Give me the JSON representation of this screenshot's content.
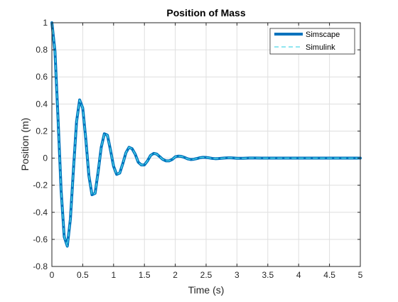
{
  "figure": {
    "title": "Position of Mass",
    "xlabel": "Time (s)",
    "ylabel": "Position (m)"
  },
  "chart_data": {
    "type": "line",
    "title": "Position of Mass",
    "xlabel": "Time (s)",
    "ylabel": "Position (m)",
    "xlim": [
      0,
      5
    ],
    "ylim": [
      -0.8,
      1
    ],
    "xticks": [
      0,
      0.5,
      1,
      1.5,
      2,
      2.5,
      3,
      3.5,
      4,
      4.5,
      5
    ],
    "xtick_labels": [
      "0",
      "0.5",
      "1",
      "1.5",
      "2",
      "2.5",
      "3",
      "3.5",
      "4",
      "4.5",
      "5"
    ],
    "yticks": [
      -0.8,
      -0.6,
      -0.4,
      -0.2,
      0,
      0.2,
      0.4,
      0.6,
      0.8,
      1
    ],
    "ytick_labels": [
      "-0.8",
      "-0.6",
      "-0.4",
      "-0.2",
      "0",
      "0.2",
      "0.4",
      "0.6",
      "0.8",
      "1"
    ],
    "grid": true,
    "legend_position": "top-right",
    "x": [
      0,
      0.05,
      0.1,
      0.15,
      0.2,
      0.25,
      0.3,
      0.35,
      0.4,
      0.45,
      0.5,
      0.55,
      0.6,
      0.65,
      0.7,
      0.75,
      0.8,
      0.85,
      0.9,
      0.95,
      1.0,
      1.05,
      1.1,
      1.15,
      1.2,
      1.25,
      1.3,
      1.35,
      1.4,
      1.45,
      1.5,
      1.55,
      1.6,
      1.65,
      1.7,
      1.75,
      1.8,
      1.85,
      1.9,
      1.95,
      2.0,
      2.05,
      2.1,
      2.15,
      2.2,
      2.25,
      2.3,
      2.35,
      2.4,
      2.45,
      2.5,
      2.55,
      2.6,
      2.65,
      2.7,
      2.75,
      2.8,
      2.85,
      2.9,
      2.95,
      3.0,
      3.1,
      3.2,
      3.3,
      3.4,
      3.5,
      3.6,
      3.7,
      3.8,
      3.9,
      4.0,
      4.1,
      4.2,
      4.3,
      4.4,
      4.5,
      4.6,
      4.7,
      4.8,
      4.9,
      5.0
    ],
    "series": [
      {
        "name": "Simscape",
        "color": "#0072bd",
        "style": "solid",
        "values": [
          1.0,
          0.79,
          0.29,
          -0.24,
          -0.58,
          -0.65,
          -0.45,
          -0.08,
          0.27,
          0.43,
          0.37,
          0.14,
          -0.13,
          -0.27,
          -0.26,
          -0.1,
          0.08,
          0.18,
          0.17,
          0.06,
          -0.06,
          -0.12,
          -0.11,
          -0.04,
          0.04,
          0.08,
          0.07,
          0.03,
          -0.03,
          -0.05,
          -0.05,
          -0.02,
          0.02,
          0.035,
          0.03,
          0.01,
          -0.01,
          -0.02,
          -0.02,
          -0.01,
          0.01,
          0.015,
          0.013,
          0.005,
          -0.005,
          -0.01,
          -0.008,
          -0.003,
          0.003,
          0.006,
          0.005,
          0.002,
          -0.002,
          -0.004,
          -0.003,
          -0.001,
          0.001,
          0.002,
          0.002,
          0.001,
          -0.001,
          -0.001,
          0.001,
          0.001,
          0.0,
          0.0,
          0.0,
          0.0,
          0.0,
          0.0,
          0.0,
          0.0,
          0.0,
          0.0,
          0.0,
          0.0,
          0.0,
          0.0,
          0.0,
          0.0,
          0.0
        ]
      },
      {
        "name": "Simulink",
        "color": "#4dd8e8",
        "style": "dashed",
        "values": [
          1.0,
          0.79,
          0.29,
          -0.24,
          -0.58,
          -0.65,
          -0.45,
          -0.08,
          0.27,
          0.43,
          0.37,
          0.14,
          -0.13,
          -0.27,
          -0.26,
          -0.1,
          0.08,
          0.18,
          0.17,
          0.06,
          -0.06,
          -0.12,
          -0.11,
          -0.04,
          0.04,
          0.08,
          0.07,
          0.03,
          -0.03,
          -0.05,
          -0.05,
          -0.02,
          0.02,
          0.035,
          0.03,
          0.01,
          -0.01,
          -0.02,
          -0.02,
          -0.01,
          0.01,
          0.015,
          0.013,
          0.005,
          -0.005,
          -0.01,
          -0.008,
          -0.003,
          0.003,
          0.006,
          0.005,
          0.002,
          -0.002,
          -0.004,
          -0.003,
          -0.001,
          0.001,
          0.002,
          0.002,
          0.001,
          -0.001,
          -0.001,
          0.001,
          0.001,
          0.0,
          0.0,
          0.0,
          0.0,
          0.0,
          0.0,
          0.0,
          0.0,
          0.0,
          0.0,
          0.0,
          0.0,
          0.0,
          0.0,
          0.0,
          0.0,
          0.0
        ]
      }
    ]
  }
}
